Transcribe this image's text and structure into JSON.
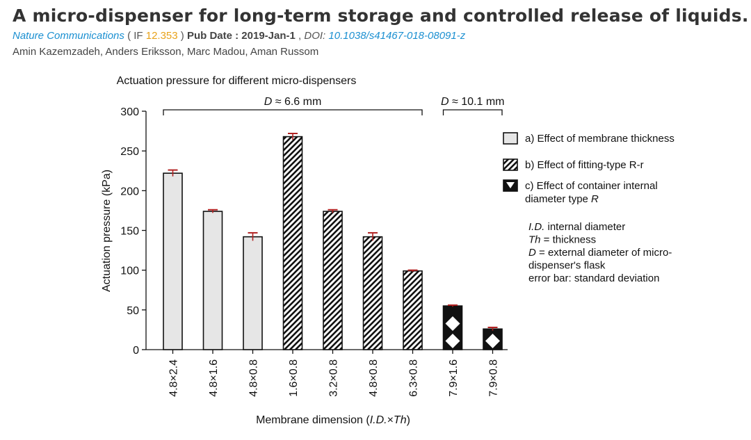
{
  "paper": {
    "title": "A micro-dispenser for long-term storage and controlled release of liquids.",
    "journal": "Nature Communications",
    "if_prefix": " ( IF ",
    "impact_factor": "12.353",
    "if_suffix": " ) ",
    "pub_date_label": "Pub Date : 2019-Jan-1",
    "doi_label": "DOI:",
    "doi": "10.1038/s41467-018-08091-z",
    "authors": "Amin Kazemzadeh, Anders Eriksson, Marc Madou, Aman Russom"
  },
  "chart_data": {
    "type": "bar",
    "title": "Actuation pressure for different micro-dispensers",
    "xlabel": "Membrane dimension (I.D.×Th)",
    "ylabel": "Actuation pressure (kPa)",
    "ylim": [
      0,
      300
    ],
    "yticks": [
      0,
      50,
      100,
      150,
      200,
      250,
      300
    ],
    "categories": [
      "4.8×2.4",
      "4.8×1.6",
      "4.8×0.8",
      "1.6×0.8",
      "3.2×0.8",
      "4.8×0.8",
      "6.3×0.8",
      "7.9×1.6",
      "7.9×0.8"
    ],
    "values": [
      222,
      174,
      142,
      268,
      174,
      142,
      99,
      55,
      26
    ],
    "errors": [
      4,
      2,
      5,
      4,
      2,
      5,
      1,
      1,
      2
    ],
    "group": [
      "a",
      "a",
      "a",
      "b",
      "b",
      "b",
      "b",
      "c",
      "c"
    ],
    "brackets": [
      {
        "label": "D ≈ 6.6 mm",
        "from": 0,
        "to": 6
      },
      {
        "label": "D ≈ 10.1 mm",
        "from": 7,
        "to": 8
      }
    ],
    "legend": [
      {
        "key": "a",
        "label": "a) Effect of membrane thickness"
      },
      {
        "key": "b",
        "label": "b) Effect of fitting-type R-r"
      },
      {
        "key": "c",
        "label": "c) Effect of container internal",
        "label2": "diameter type R"
      }
    ],
    "notes": [
      "I.D. internal diameter",
      "Th = thickness",
      "D = external diameter of micro-",
      "dispenser's flask",
      "error bar: standard deviation"
    ],
    "colors": {
      "fill_a": "#e6e6e6",
      "stroke": "#111111",
      "error": "#b22222"
    },
    "legend_position": "right"
  }
}
